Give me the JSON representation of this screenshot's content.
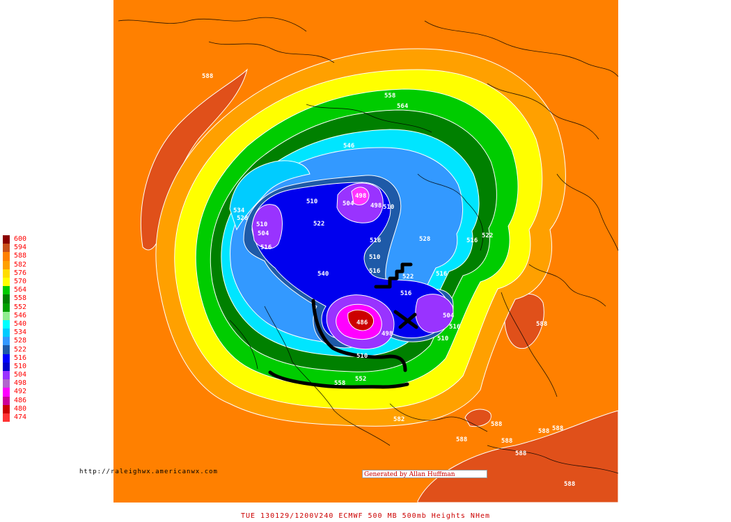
{
  "legend": {
    "entries": [
      {
        "value": "600",
        "color": "#8b0000"
      },
      {
        "value": "594",
        "color": "#c8501a"
      },
      {
        "value": "588",
        "color": "#ff8000"
      },
      {
        "value": "582",
        "color": "#ffa000"
      },
      {
        "value": "576",
        "color": "#ffdd00"
      },
      {
        "value": "570",
        "color": "#ffff00"
      },
      {
        "value": "564",
        "color": "#00cc00"
      },
      {
        "value": "558",
        "color": "#008000"
      },
      {
        "value": "552",
        "color": "#00a000"
      },
      {
        "value": "546",
        "color": "#90ee90"
      },
      {
        "value": "540",
        "color": "#00ffff"
      },
      {
        "value": "534",
        "color": "#00ccff"
      },
      {
        "value": "528",
        "color": "#3399ff"
      },
      {
        "value": "522",
        "color": "#1e5aa8"
      },
      {
        "value": "516",
        "color": "#0000ff"
      },
      {
        "value": "510",
        "color": "#0000cc"
      },
      {
        "value": "504",
        "color": "#9933ff"
      },
      {
        "value": "498",
        "color": "#b266cc"
      },
      {
        "value": "492",
        "color": "#ff00ff"
      },
      {
        "value": "486",
        "color": "#cc0099"
      },
      {
        "value": "480",
        "color": "#cc0000"
      },
      {
        "value": "474",
        "color": "#ff3333"
      }
    ]
  },
  "contour_labels": [
    {
      "text": "588"
    },
    {
      "text": "588"
    },
    {
      "text": "588"
    },
    {
      "text": "588"
    },
    {
      "text": "588"
    },
    {
      "text": "588"
    },
    {
      "text": "588"
    },
    {
      "text": "588"
    },
    {
      "text": "588"
    },
    {
      "text": "546"
    },
    {
      "text": "534"
    },
    {
      "text": "528"
    },
    {
      "text": "510"
    },
    {
      "text": "504"
    },
    {
      "text": "516"
    },
    {
      "text": "510"
    },
    {
      "text": "504"
    },
    {
      "text": "498"
    },
    {
      "text": "498"
    },
    {
      "text": "510"
    },
    {
      "text": "522"
    },
    {
      "text": "516"
    },
    {
      "text": "510"
    },
    {
      "text": "516"
    },
    {
      "text": "522"
    },
    {
      "text": "516"
    },
    {
      "text": "516"
    },
    {
      "text": "504"
    },
    {
      "text": "516"
    },
    {
      "text": "510"
    },
    {
      "text": "528"
    },
    {
      "text": "516"
    },
    {
      "text": "522"
    },
    {
      "text": "540"
    },
    {
      "text": "486"
    },
    {
      "text": "498"
    },
    {
      "text": "510"
    },
    {
      "text": "558"
    },
    {
      "text": "552"
    },
    {
      "text": "582"
    },
    {
      "text": "558"
    },
    {
      "text": "564"
    }
  ],
  "url": "http://raleighwx.americanwx.com",
  "credit": "Generated by Allan Huffman",
  "footer": "TUE 130129/1200V240   ECMWF   500 MB 500mb Heights NHem",
  "colors": {
    "background_field": "#ff8000",
    "high_pocket": "#e0501a",
    "annotation_lines": "#000000",
    "contour_lines": "#ffffff",
    "text_red": "#cc0000"
  }
}
